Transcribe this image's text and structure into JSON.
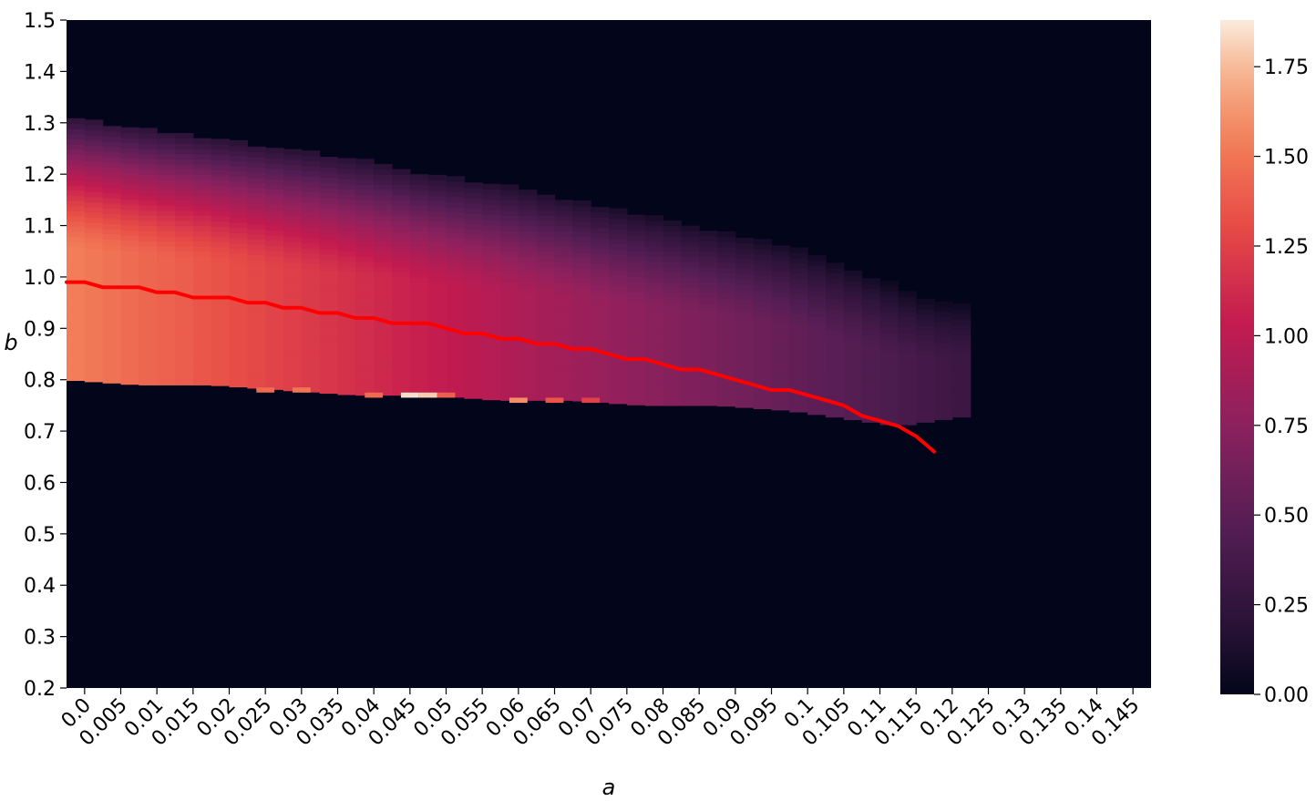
{
  "chart_data": {
    "type": "heatmap",
    "xlabel": "a",
    "ylabel": "b",
    "x_ticks": [
      "0.0",
      "0.005",
      "0.01",
      "0.015",
      "0.02",
      "0.025",
      "0.03",
      "0.035",
      "0.04",
      "0.045",
      "0.05",
      "0.055",
      "0.06",
      "0.065",
      "0.07",
      "0.075",
      "0.08",
      "0.085",
      "0.09",
      "0.095",
      "0.1",
      "0.105",
      "0.11",
      "0.115",
      "0.12",
      "0.125",
      "0.13",
      "0.135",
      "0.14",
      "0.145"
    ],
    "y_ticks": [
      "1.5",
      "1.4",
      "1.3",
      "1.2",
      "1.1",
      "1.0",
      "0.9",
      "0.8",
      "0.7",
      "0.6",
      "0.5",
      "0.4",
      "0.3",
      "0.2"
    ],
    "xlim": [
      0,
      0.15
    ],
    "ylim": [
      0.2,
      1.5
    ],
    "a_step": 0.0025,
    "b_step": 0.01,
    "colorbar": {
      "range": [
        0.0,
        1.88
      ],
      "ticks": [
        "0.00",
        "0.25",
        "0.50",
        "0.75",
        "1.00",
        "1.25",
        "1.50",
        "1.75"
      ],
      "colormap": "rocket"
    },
    "region": {
      "description_of_values": "nonzero band between lower and upper boundary",
      "a": [
        0.0,
        0.01,
        0.02,
        0.03,
        0.04,
        0.05,
        0.06,
        0.07,
        0.08,
        0.09,
        0.1,
        0.11,
        0.115,
        0.12,
        0.125
      ],
      "b_upper": [
        1.31,
        1.29,
        1.27,
        1.25,
        1.23,
        1.2,
        1.18,
        1.15,
        1.12,
        1.09,
        1.06,
        1.01,
        0.98,
        0.95,
        0.95
      ],
      "b_lower": [
        0.8,
        0.79,
        0.79,
        0.78,
        0.77,
        0.77,
        0.76,
        0.76,
        0.75,
        0.75,
        0.74,
        0.72,
        0.71,
        0.72,
        0.73
      ],
      "value_at_a0": 1.55,
      "value_at_a_max": 0.3
    },
    "bright_cells": [
      {
        "a": 0.0475,
        "b": 0.77,
        "value": 1.85
      },
      {
        "a": 0.05,
        "b": 0.77,
        "value": 1.8
      },
      {
        "a": 0.0625,
        "b": 0.76,
        "value": 1.6
      },
      {
        "a": 0.0325,
        "b": 0.78,
        "value": 1.5
      },
      {
        "a": 0.0275,
        "b": 0.78,
        "value": 1.45
      },
      {
        "a": 0.0425,
        "b": 0.77,
        "value": 1.45
      },
      {
        "a": 0.0525,
        "b": 0.77,
        "value": 1.4
      },
      {
        "a": 0.0675,
        "b": 0.76,
        "value": 1.35
      },
      {
        "a": 0.0725,
        "b": 0.76,
        "value": 1.25
      }
    ],
    "series": [
      {
        "a": [
          0.0,
          0.0025,
          0.005,
          0.0075,
          0.01,
          0.0125,
          0.015,
          0.0175,
          0.02,
          0.0225,
          0.025,
          0.0275,
          0.03,
          0.0325,
          0.035,
          0.0375,
          0.04,
          0.0425,
          0.045,
          0.0475,
          0.05,
          0.0525,
          0.055,
          0.0575,
          0.06,
          0.0625,
          0.065,
          0.0675,
          0.07,
          0.0725,
          0.075,
          0.0775,
          0.08,
          0.0825,
          0.085,
          0.0875,
          0.09,
          0.0925,
          0.095,
          0.0975,
          0.1,
          0.1025,
          0.105,
          0.1075,
          0.11,
          0.1125,
          0.115,
          0.1175,
          0.12
        ],
        "b": [
          0.99,
          0.99,
          0.98,
          0.98,
          0.98,
          0.97,
          0.97,
          0.96,
          0.96,
          0.96,
          0.95,
          0.95,
          0.94,
          0.94,
          0.93,
          0.93,
          0.92,
          0.92,
          0.91,
          0.91,
          0.91,
          0.9,
          0.89,
          0.89,
          0.88,
          0.88,
          0.87,
          0.87,
          0.86,
          0.86,
          0.85,
          0.84,
          0.84,
          0.83,
          0.82,
          0.82,
          0.81,
          0.8,
          0.79,
          0.78,
          0.78,
          0.77,
          0.76,
          0.75,
          0.73,
          0.72,
          0.71,
          0.69,
          0.66
        ],
        "color": "#ff0000"
      }
    ]
  }
}
